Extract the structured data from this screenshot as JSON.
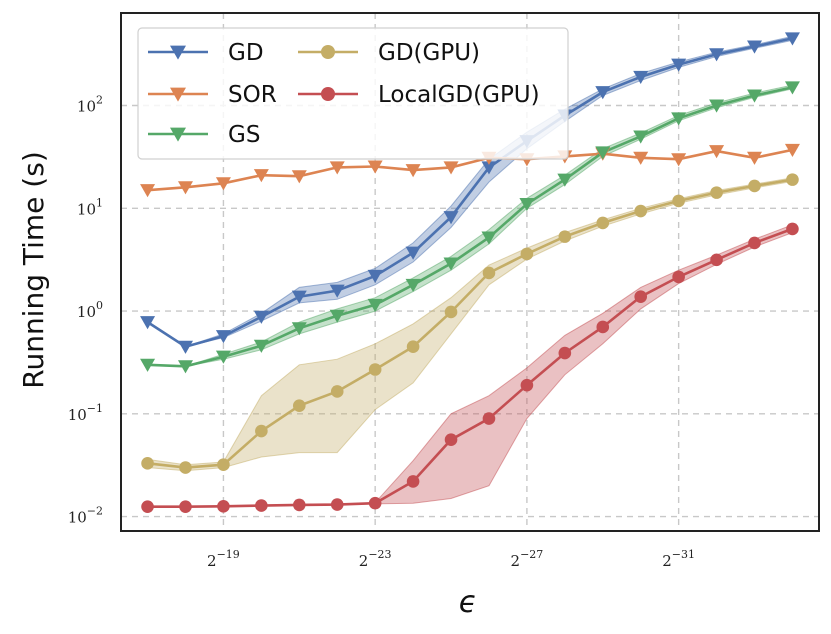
{
  "chart_data": {
    "type": "line",
    "xlabel": "ϵ",
    "ylabel": "Running Time (s)",
    "xscale": "log2 (decreasing ϵ left to right)",
    "yscale": "log10",
    "x_exponents": [
      -17,
      -18,
      -19,
      -20,
      -21,
      -22,
      -23,
      -24,
      -25,
      -26,
      -27,
      -28,
      -29,
      -30,
      -31,
      -32,
      -33,
      -34
    ],
    "xticks": [
      {
        "base": "2",
        "exp": "−19",
        "value": -19
      },
      {
        "base": "2",
        "exp": "−23",
        "value": -23
      },
      {
        "base": "2",
        "exp": "−27",
        "value": -27
      },
      {
        "base": "2",
        "exp": "−31",
        "value": -31
      }
    ],
    "yticks": [
      {
        "base": "10",
        "exp": "−2",
        "value": -2
      },
      {
        "base": "10",
        "exp": "−1",
        "value": -1
      },
      {
        "base": "10",
        "exp": "0",
        "value": 0
      },
      {
        "base": "10",
        "exp": "1",
        "value": 1
      },
      {
        "base": "10",
        "exp": "2",
        "value": 2
      }
    ],
    "ylim_log10": [
      -2.14,
      2.9
    ],
    "xlim_exp": [
      -16.3,
      -34.7
    ],
    "grid": true,
    "legend_position": "top-left",
    "series": [
      {
        "name": "GD",
        "color": "#4c72b0",
        "marker": "triangle-down",
        "values": [
          0.78,
          0.45,
          0.57,
          0.88,
          1.38,
          1.58,
          2.2,
          3.7,
          8.2,
          25,
          45,
          80,
          135,
          190,
          250,
          315,
          375,
          450
        ],
        "lower": [
          0.78,
          0.45,
          0.55,
          0.8,
          1.2,
          1.3,
          1.8,
          3.0,
          6.5,
          18,
          38,
          70,
          125,
          175,
          235,
          300,
          360,
          430
        ],
        "upper": [
          0.78,
          0.45,
          0.6,
          0.95,
          1.7,
          1.9,
          2.6,
          4.6,
          10.5,
          30,
          55,
          92,
          145,
          205,
          265,
          330,
          390,
          470
        ]
      },
      {
        "name": "SOR",
        "color": "#dd8452",
        "marker": "triangle-down",
        "values": [
          15,
          16,
          17.5,
          21,
          20.5,
          25,
          25.5,
          23.5,
          25,
          31,
          30,
          32,
          34,
          31,
          30,
          36,
          31,
          37
        ],
        "lower": null,
        "upper": null
      },
      {
        "name": "GS",
        "color": "#55a868",
        "marker": "triangle-down",
        "values": [
          0.3,
          0.29,
          0.36,
          0.46,
          0.68,
          0.9,
          1.15,
          1.8,
          2.9,
          5.2,
          11,
          19,
          35,
          50,
          75,
          100,
          125,
          150
        ],
        "lower": [
          0.3,
          0.29,
          0.34,
          0.42,
          0.6,
          0.78,
          1.0,
          1.55,
          2.5,
          4.5,
          10,
          17,
          32,
          47,
          71,
          95,
          120,
          145
        ],
        "upper": [
          0.3,
          0.29,
          0.38,
          0.5,
          0.78,
          1.05,
          1.35,
          2.1,
          3.4,
          6.2,
          12.5,
          21,
          38,
          54,
          80,
          106,
          132,
          158
        ]
      },
      {
        "name": "GD(GPU)",
        "color": "#c4ad66",
        "marker": "circle",
        "values": [
          0.033,
          0.03,
          0.032,
          0.068,
          0.12,
          0.165,
          0.27,
          0.45,
          0.98,
          2.35,
          3.6,
          5.3,
          7.2,
          9.4,
          11.8,
          14.2,
          16.5,
          19
        ],
        "lower": [
          0.03,
          0.028,
          0.03,
          0.038,
          0.042,
          0.042,
          0.11,
          0.2,
          0.6,
          1.8,
          3.2,
          4.8,
          6.7,
          8.8,
          11.2,
          13.5,
          15.8,
          18.2
        ],
        "upper": [
          0.036,
          0.032,
          0.034,
          0.15,
          0.3,
          0.34,
          0.48,
          0.75,
          1.35,
          2.8,
          4.1,
          5.8,
          7.7,
          10,
          12.4,
          14.9,
          17.2,
          19.8
        ]
      },
      {
        "name": "LocalGD(GPU)",
        "color": "#c44e52",
        "marker": "circle",
        "values": [
          0.0125,
          0.0125,
          0.0126,
          0.0128,
          0.013,
          0.0131,
          0.0135,
          0.022,
          0.056,
          0.09,
          0.19,
          0.39,
          0.7,
          1.38,
          2.15,
          3.15,
          4.6,
          6.3
        ],
        "lower": [
          0.0125,
          0.0125,
          0.0126,
          0.0128,
          0.013,
          0.0131,
          0.0133,
          0.0135,
          0.015,
          0.02,
          0.09,
          0.24,
          0.48,
          1.05,
          1.85,
          2.85,
          4.2,
          5.8
        ],
        "upper": [
          0.0125,
          0.0125,
          0.0126,
          0.0128,
          0.013,
          0.0131,
          0.0137,
          0.035,
          0.1,
          0.15,
          0.28,
          0.58,
          0.95,
          1.7,
          2.5,
          3.5,
          5.0,
          6.9
        ]
      }
    ]
  }
}
